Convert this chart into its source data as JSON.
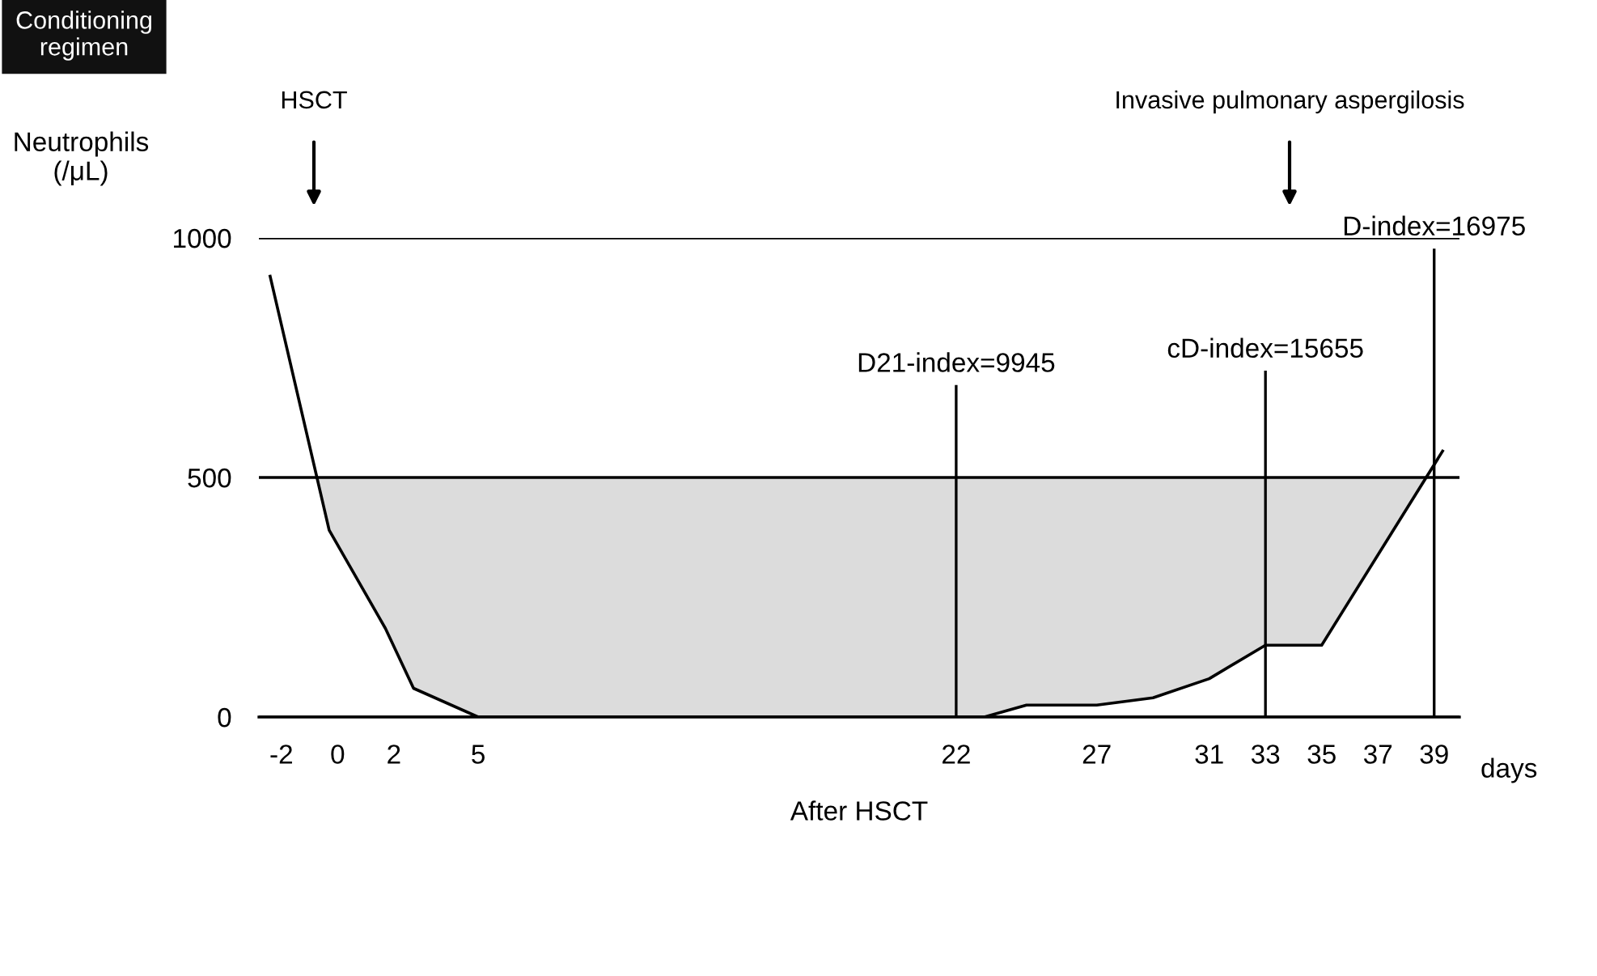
{
  "chart_data": {
    "type": "line",
    "ylabel": "Neutrophils\n(/μL)",
    "xlabel": "After HSCT",
    "x": [
      -2.4,
      -0.3,
      1.7,
      2.7,
      5,
      22,
      23,
      24.5,
      27,
      29,
      31,
      33,
      35,
      39.3
    ],
    "series": [
      {
        "color": "#000000",
        "values": [
          920,
          390,
          185,
          60,
          0,
          0,
          0,
          25,
          25,
          40,
          80,
          150,
          150,
          555
        ]
      }
    ],
    "xlim": [
      -2.8,
      39.9
    ],
    "xticks": [
      -2,
      0,
      2,
      5,
      22,
      27,
      31,
      33,
      35,
      37,
      39
    ],
    "ylim": [
      0,
      1000
    ],
    "yticks": [
      0,
      500,
      1000
    ],
    "grid": "y",
    "marker": "none",
    "line_style": "solid",
    "bands": [
      {
        "axis": "y",
        "from": 0,
        "to": 500,
        "color": "#dcdcdc"
      }
    ],
    "ref_lines": [
      {
        "axis": "x",
        "value": 22,
        "color": "#000000"
      },
      {
        "axis": "x",
        "value": 33,
        "color": "#000000"
      },
      {
        "axis": "x",
        "value": 39,
        "color": "#000000"
      }
    ],
    "annotations": [
      "Conditioning\nregimen",
      "days",
      "HSCT",
      "Invasive pulmonary aspergilosis",
      "D21-index=9945",
      "cD-index=15655",
      "D-index=16975"
    ]
  }
}
